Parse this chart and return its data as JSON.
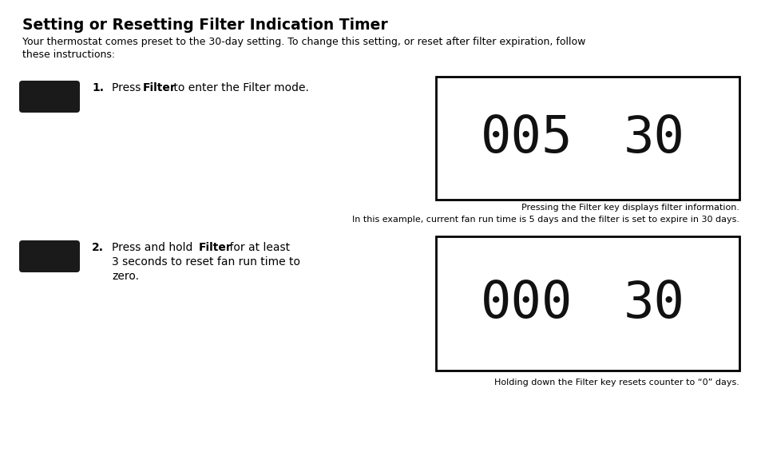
{
  "title": "Setting or Resetting Filter Indication Timer",
  "subtitle_line1": "Your thermostat comes preset to the 30-day setting. To change this setting, or reset after filter expiration, follow",
  "subtitle_line2": "these instructions:",
  "step1_number": "1.",
  "step1_pre": "Press ",
  "step1_bold": "Filter",
  "step1_post": " to enter the Filter mode.",
  "step2_number": "2.",
  "step2_pre": "Press and hold ",
  "step2_bold": "Filter",
  "step2_post": " for at least",
  "step2_line2": "3 seconds to reset fan run time to",
  "step2_line3": "zero.",
  "display1_left": "005",
  "display1_right": "30",
  "display2_left": "000",
  "display2_right": "30",
  "caption1_line1": "Pressing the Filter key displays filter information.",
  "caption1_line2": "In this example, current fan run time is 5 days and the filter is set to expire in 30 days.",
  "caption2": "Holding down the Filter key resets counter to “0” days.",
  "bg_color": "#ffffff",
  "text_color": "#000000",
  "button_color": "#1a1a1a",
  "display_border_color": "#000000"
}
